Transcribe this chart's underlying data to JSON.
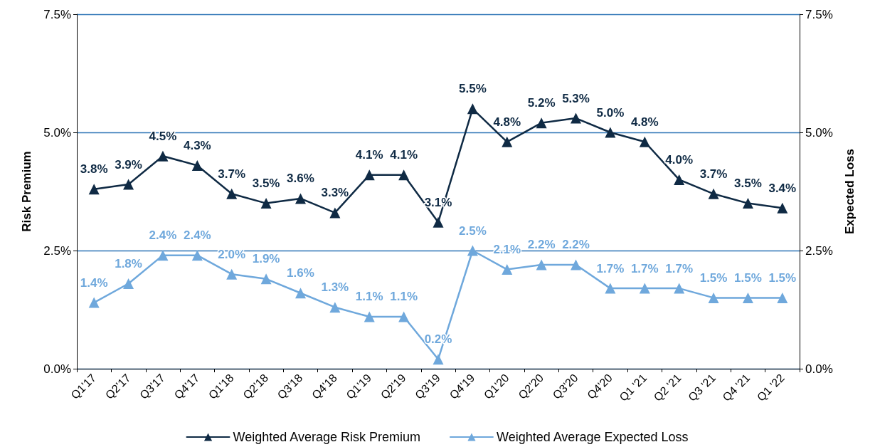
{
  "chart_data": {
    "type": "line",
    "ylabel": "Risk Premium",
    "y2label": "Expected Loss",
    "categories": [
      "Q1'17",
      "Q2'17",
      "Q3'17",
      "Q4'17",
      "Q1'18",
      "Q2'18",
      "Q3'18",
      "Q4'18",
      "Q1'19",
      "Q2'19",
      "Q3'19",
      "Q4'19",
      "Q1'20",
      "Q2'20",
      "Q3'20",
      "Q4'20",
      "Q1 '21",
      "Q2 '21",
      "Q3 '21",
      "Q4 '21",
      "Q1 '22"
    ],
    "series": [
      {
        "name": "Weighted Average Risk Premium",
        "color": "#0f2a44",
        "values": [
          3.8,
          3.9,
          4.5,
          4.3,
          3.7,
          3.5,
          3.6,
          3.3,
          4.1,
          4.1,
          3.1,
          5.5,
          4.8,
          5.2,
          5.3,
          5.0,
          4.8,
          4.0,
          3.7,
          3.5,
          3.4
        ],
        "value_labels": [
          "3.8%",
          "3.9%",
          "4.5%",
          "4.3%",
          "3.7%",
          "3.5%",
          "3.6%",
          "3.3%",
          "4.1%",
          "4.1%",
          "3.1%",
          "5.5%",
          "4.8%",
          "5.2%",
          "5.3%",
          "5.0%",
          "4.8%",
          "4.0%",
          "3.7%",
          "3.5%",
          "3.4%"
        ]
      },
      {
        "name": "Weighted Average Expected Loss",
        "color": "#6fa8dc",
        "values": [
          1.4,
          1.8,
          2.4,
          2.4,
          2.0,
          1.9,
          1.6,
          1.3,
          1.1,
          1.1,
          0.2,
          2.5,
          2.1,
          2.2,
          2.2,
          1.7,
          1.7,
          1.7,
          1.5,
          1.5,
          1.5
        ],
        "value_labels": [
          "1.4%",
          "1.8%",
          "2.4%",
          "2.4%",
          "2.0%",
          "1.9%",
          "1.6%",
          "1.3%",
          "1.1%",
          "1.1%",
          "0.2%",
          "2.5%",
          "2.1%",
          "2.2%",
          "2.2%",
          "1.7%",
          "1.7%",
          "1.7%",
          "1.5%",
          "1.5%",
          "1.5%"
        ]
      }
    ],
    "ylim": [
      0,
      7.5
    ],
    "yticks": [
      {
        "value": 0,
        "label": "0.0%"
      },
      {
        "value": 2.5,
        "label": "2.5%"
      },
      {
        "value": 5,
        "label": "5.0%"
      },
      {
        "value": 7.5,
        "label": "7.5%"
      }
    ],
    "y2lim": [
      0,
      7.5
    ],
    "y2ticks": [
      {
        "value": 0,
        "label": "0.0%"
      },
      {
        "value": 2.5,
        "label": "2.5%"
      },
      {
        "value": 5,
        "label": "5.0%"
      },
      {
        "value": 7.5,
        "label": "7.5%"
      }
    ],
    "grid": "y",
    "legend": "bottom",
    "marker": "triangle",
    "line_style": "solid"
  }
}
